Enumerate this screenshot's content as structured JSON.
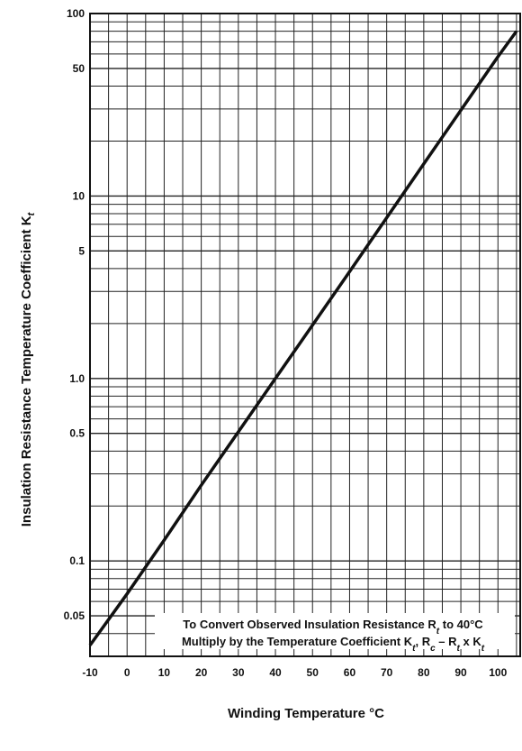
{
  "chart_data": {
    "type": "line",
    "title": "",
    "xlabel": "Winding Temperature °C",
    "ylabel": {
      "main": "Insulation Resistance Temperature Coefficient K",
      "sub": "t"
    },
    "xlim": [
      -10,
      106
    ],
    "ylim": [
      0.03,
      100
    ],
    "yscale": "log",
    "grid": true,
    "x_ticks": [
      "-10",
      "0",
      "10",
      "20",
      "30",
      "40",
      "50",
      "60",
      "70",
      "80",
      "90",
      "100"
    ],
    "x_tick_values": [
      -10,
      0,
      10,
      20,
      30,
      40,
      50,
      60,
      70,
      80,
      90,
      100
    ],
    "y_ticks": [
      "100",
      "50",
      "10",
      "5",
      "1.0",
      "0.5",
      "0.1",
      "0.05"
    ],
    "y_tick_values": [
      100,
      50,
      10,
      5,
      1,
      0.5,
      0.1,
      0.05
    ],
    "series": [
      {
        "x": [
          -10,
          0,
          10,
          20,
          30,
          40,
          50,
          60,
          70,
          80,
          90,
          100,
          105
        ],
        "y": [
          0.0345,
          0.066,
          0.13,
          0.26,
          0.51,
          1.0,
          1.96,
          3.85,
          7.6,
          15.0,
          29.5,
          58,
          80
        ]
      }
    ],
    "annotation": {
      "line1_parts": [
        {
          "text": "To Convert Observed Insulation Resistance R",
          "style": "normal"
        },
        {
          "text": "t",
          "style": "sub"
        },
        {
          "text": " to 40°C",
          "style": "normal"
        }
      ],
      "line2_parts": [
        {
          "text": "Multiply by the Temperature Coefficient K",
          "style": "normal"
        },
        {
          "text": "t",
          "style": "sub"
        },
        {
          "text": ", R",
          "style": "normal"
        },
        {
          "text": "c",
          "style": "sub"
        },
        {
          "text": " – R",
          "style": "normal"
        },
        {
          "text": "t",
          "style": "sub"
        },
        {
          "text": " x K",
          "style": "normal"
        },
        {
          "text": "t",
          "style": "sub"
        }
      ]
    }
  }
}
